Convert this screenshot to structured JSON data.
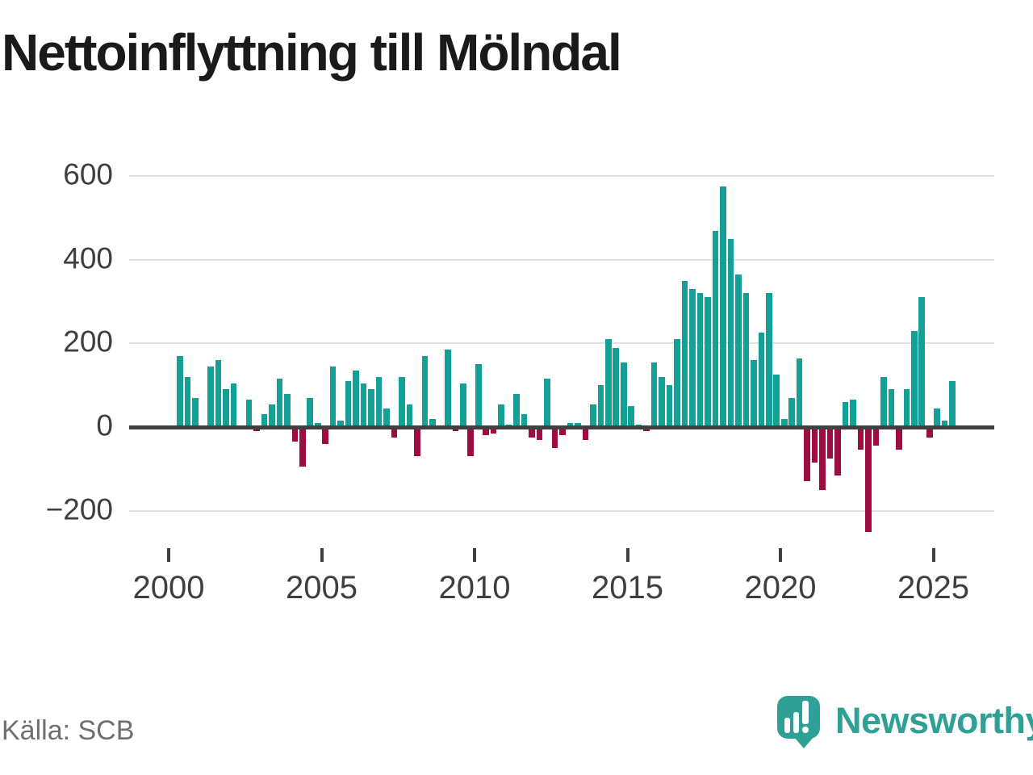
{
  "title": "Nettoinflyttning till Mölndal",
  "source": {
    "text": "Källa: SCB"
  },
  "branding": {
    "name": "Newsworthy"
  },
  "colors": {
    "positive_bar": "#14a096",
    "negative_bar": "#9e0d42",
    "baseline": "#404040",
    "gridline": "#e1e1e1",
    "axis_text": "#3f3f3f",
    "title_text": "#1a1a1a",
    "source_text": "#6f6f6f",
    "brand_teal": "#2fa096"
  },
  "chart_data": {
    "type": "bar",
    "title": "Nettoinflyttning till Mölndal",
    "xlabel": "",
    "ylabel": "",
    "period": "quarterly",
    "start_quarter": "2000 Q2",
    "end_quarter": "2025 Q3",
    "ylim": [
      -280,
      640
    ],
    "grid": true,
    "y_ticks": [
      {
        "label": "600",
        "value": 600
      },
      {
        "label": "400",
        "value": 400
      },
      {
        "label": "200",
        "value": 200
      },
      {
        "label": "0",
        "value": 0
      },
      {
        "label": "−200",
        "value": -200
      }
    ],
    "x_ticks": [
      {
        "label": "2000",
        "year": 2000
      },
      {
        "label": "2005",
        "year": 2005
      },
      {
        "label": "2010",
        "year": 2010
      },
      {
        "label": "2015",
        "year": 2015
      },
      {
        "label": "2020",
        "year": 2020
      },
      {
        "label": "2025",
        "year": 2025
      }
    ],
    "values": [
      170,
      120,
      70,
      0,
      145,
      160,
      90,
      105,
      0,
      65,
      -10,
      30,
      55,
      115,
      80,
      -35,
      -95,
      70,
      10,
      -40,
      145,
      15,
      110,
      135,
      105,
      90,
      120,
      45,
      -25,
      120,
      55,
      -70,
      170,
      20,
      0,
      185,
      -10,
      105,
      -70,
      150,
      -20,
      -15,
      55,
      5,
      80,
      30,
      -25,
      -30,
      115,
      -50,
      -20,
      10,
      10,
      -30,
      55,
      100,
      210,
      190,
      155,
      50,
      5,
      -10,
      155,
      120,
      100,
      210,
      350,
      330,
      320,
      310,
      470,
      575,
      450,
      365,
      320,
      160,
      225,
      320,
      125,
      20,
      70,
      165,
      -130,
      -85,
      -150,
      -75,
      -115,
      60,
      65,
      -55,
      -250,
      -45,
      120,
      90,
      -55,
      90,
      230,
      310,
      -25,
      45,
      15,
      110
    ]
  }
}
